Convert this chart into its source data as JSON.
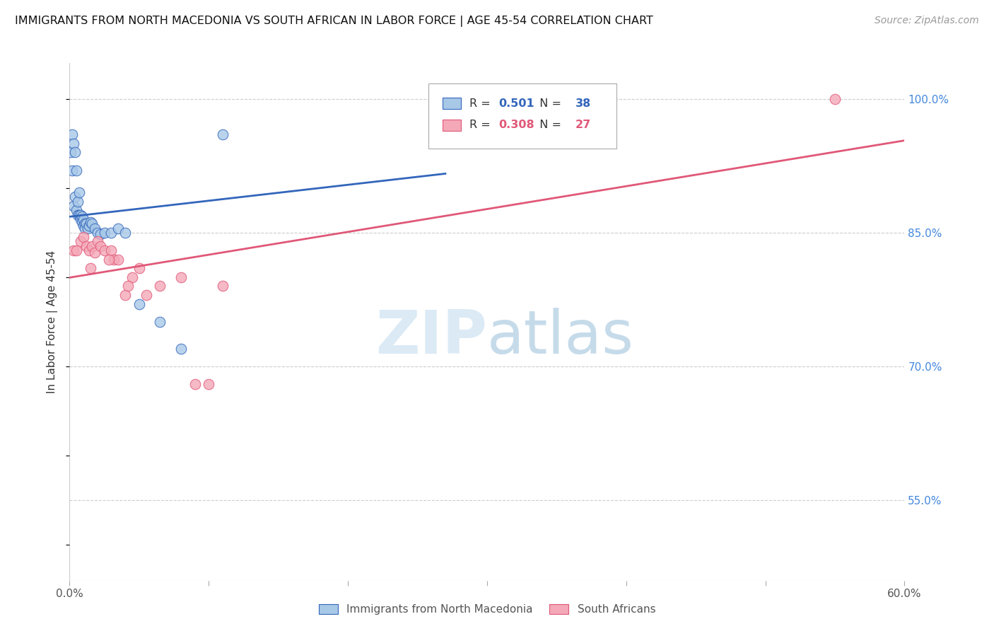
{
  "title": "IMMIGRANTS FROM NORTH MACEDONIA VS SOUTH AFRICAN IN LABOR FORCE | AGE 45-54 CORRELATION CHART",
  "source": "Source: ZipAtlas.com",
  "ylabel": "In Labor Force | Age 45-54",
  "xlim": [
    0.0,
    0.6
  ],
  "ylim": [
    0.46,
    1.04
  ],
  "xticks": [
    0.0,
    0.1,
    0.2,
    0.3,
    0.4,
    0.5,
    0.6
  ],
  "xticklabels": [
    "0.0%",
    "",
    "",
    "",
    "",
    "",
    "60.0%"
  ],
  "yticks": [
    0.55,
    0.7,
    0.85,
    1.0
  ],
  "yticklabels": [
    "55.0%",
    "70.0%",
    "85.0%",
    "100.0%"
  ],
  "legend_label1": "Immigrants from North Macedonia",
  "legend_label2": "South Africans",
  "R1": "0.501",
  "N1": "38",
  "R2": "0.308",
  "N2": "27",
  "color1": "#a8c8e8",
  "color2": "#f4a8b8",
  "line_color1": "#3366bb",
  "line_color2": "#e05878",
  "watermark_zip": "ZIP",
  "watermark_atlas": "atlas",
  "blue_x": [
    0.001,
    0.002,
    0.002,
    0.003,
    0.003,
    0.004,
    0.004,
    0.005,
    0.005,
    0.006,
    0.006,
    0.007,
    0.007,
    0.008,
    0.008,
    0.009,
    0.009,
    0.01,
    0.01,
    0.011,
    0.011,
    0.012,
    0.013,
    0.014,
    0.015,
    0.016,
    0.018,
    0.02,
    0.022,
    0.025,
    0.03,
    0.035,
    0.04,
    0.05,
    0.065,
    0.08,
    0.11,
    0.27
  ],
  "blue_y": [
    0.94,
    0.92,
    0.96,
    0.88,
    0.95,
    0.89,
    0.94,
    0.875,
    0.92,
    0.87,
    0.885,
    0.87,
    0.895,
    0.87,
    0.865,
    0.868,
    0.862,
    0.865,
    0.858,
    0.86,
    0.855,
    0.86,
    0.855,
    0.858,
    0.862,
    0.86,
    0.855,
    0.85,
    0.848,
    0.85,
    0.85,
    0.855,
    0.85,
    0.77,
    0.75,
    0.72,
    0.96,
    1.0
  ],
  "pink_x": [
    0.003,
    0.005,
    0.008,
    0.01,
    0.012,
    0.014,
    0.016,
    0.018,
    0.02,
    0.022,
    0.025,
    0.03,
    0.032,
    0.035,
    0.04,
    0.045,
    0.05,
    0.055,
    0.065,
    0.08,
    0.09,
    0.1,
    0.11,
    0.55,
    0.015,
    0.028,
    0.042
  ],
  "pink_y": [
    0.83,
    0.83,
    0.84,
    0.845,
    0.835,
    0.83,
    0.835,
    0.828,
    0.84,
    0.835,
    0.83,
    0.83,
    0.82,
    0.82,
    0.78,
    0.8,
    0.81,
    0.78,
    0.79,
    0.8,
    0.68,
    0.68,
    0.79,
    1.0,
    0.81,
    0.82,
    0.79
  ]
}
